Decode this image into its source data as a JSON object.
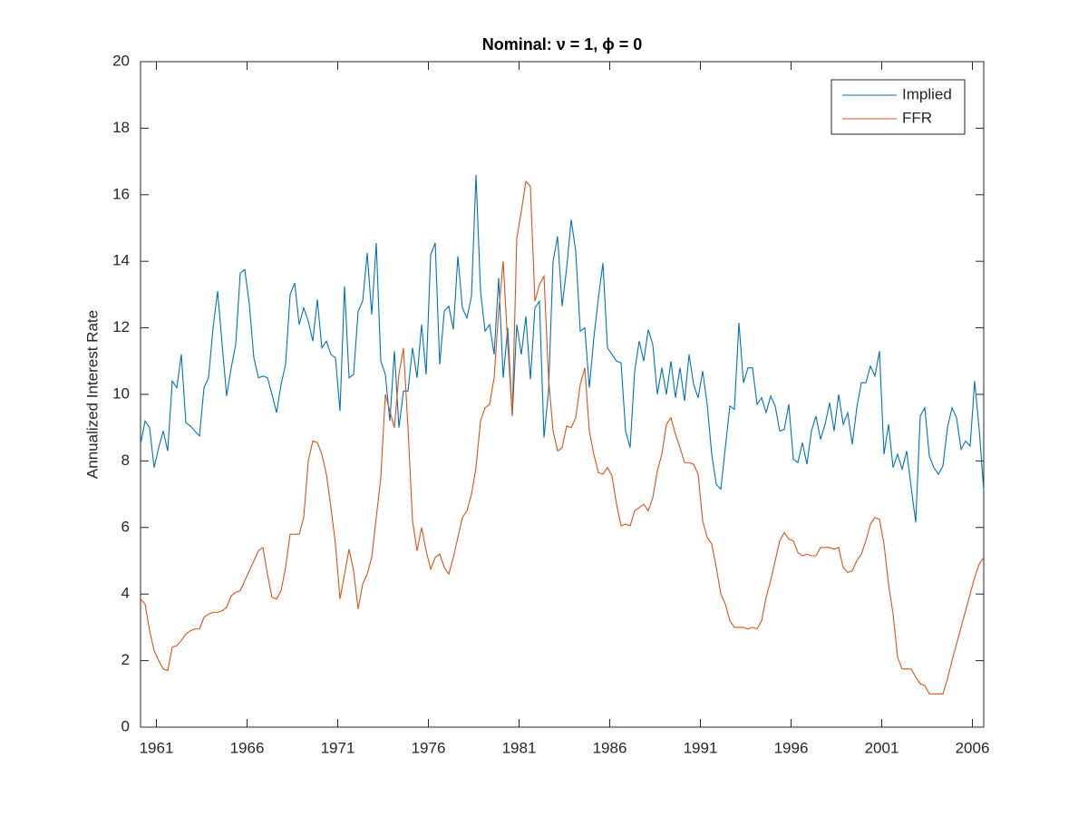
{
  "chart_data": {
    "type": "line",
    "title": "Nominal: ν = 1, ϕ = 0",
    "y_label": "Annualized Interest Rate",
    "x": [
      1960.125,
      1960.375,
      1960.625,
      1960.875,
      1961.125,
      1961.375,
      1961.625,
      1961.875,
      1962.125,
      1962.375,
      1962.625,
      1962.875,
      1963.125,
      1963.375,
      1963.625,
      1963.875,
      1964.125,
      1964.375,
      1964.625,
      1964.875,
      1965.125,
      1965.375,
      1965.625,
      1965.875,
      1966.125,
      1966.375,
      1966.625,
      1966.875,
      1967.125,
      1967.375,
      1967.625,
      1967.875,
      1968.125,
      1968.375,
      1968.625,
      1968.875,
      1969.125,
      1969.375,
      1969.625,
      1969.875,
      1970.125,
      1970.375,
      1970.625,
      1970.875,
      1971.125,
      1971.375,
      1971.625,
      1971.875,
      1972.125,
      1972.375,
      1972.625,
      1972.875,
      1973.125,
      1973.375,
      1973.625,
      1973.875,
      1974.125,
      1974.375,
      1974.625,
      1974.875,
      1975.125,
      1975.375,
      1975.625,
      1975.875,
      1976.125,
      1976.375,
      1976.625,
      1976.875,
      1977.125,
      1977.375,
      1977.625,
      1977.875,
      1978.125,
      1978.375,
      1978.625,
      1978.875,
      1979.125,
      1979.375,
      1979.625,
      1979.875,
      1980.125,
      1980.375,
      1980.625,
      1980.875,
      1981.125,
      1981.375,
      1981.625,
      1981.875,
      1982.125,
      1982.375,
      1982.625,
      1982.875,
      1983.125,
      1983.375,
      1983.625,
      1983.875,
      1984.125,
      1984.375,
      1984.625,
      1984.875,
      1985.125,
      1985.375,
      1985.625,
      1985.875,
      1986.125,
      1986.375,
      1986.625,
      1986.875,
      1987.125,
      1987.375,
      1987.625,
      1987.875,
      1988.125,
      1988.375,
      1988.625,
      1988.875,
      1989.125,
      1989.375,
      1989.625,
      1989.875,
      1990.125,
      1990.375,
      1990.625,
      1990.875,
      1991.125,
      1991.375,
      1991.625,
      1991.875,
      1992.125,
      1992.375,
      1992.625,
      1992.875,
      1993.125,
      1993.375,
      1993.625,
      1993.875,
      1994.125,
      1994.375,
      1994.625,
      1994.875,
      1995.125,
      1995.375,
      1995.625,
      1995.875,
      1996.125,
      1996.375,
      1996.625,
      1996.875,
      1997.125,
      1997.375,
      1997.625,
      1997.875,
      1998.125,
      1998.375,
      1998.625,
      1998.875,
      1999.125,
      1999.375,
      1999.625,
      1999.875,
      2000.125,
      2000.375,
      2000.625,
      2000.875,
      2001.125,
      2001.375,
      2001.625,
      2001.875,
      2002.125,
      2002.375,
      2002.625,
      2002.875,
      2003.125,
      2003.375,
      2003.625,
      2003.875,
      2004.125,
      2004.375,
      2004.625,
      2004.875,
      2005.125,
      2005.375,
      2005.625,
      2005.875,
      2006.125,
      2006.375,
      2006.625
    ],
    "series": [
      {
        "name": "Implied",
        "color": "#0072BD",
        "values": [
          8.5,
          9.2,
          9.0,
          7.8,
          8.4,
          8.9,
          8.3,
          10.4,
          10.2,
          11.2,
          9.15,
          9.05,
          8.9,
          8.75,
          10.2,
          10.5,
          12.0,
          13.1,
          11.5,
          9.95,
          10.8,
          11.5,
          13.65,
          13.75,
          12.7,
          11.1,
          10.5,
          10.55,
          10.5,
          10.0,
          9.45,
          10.3,
          10.9,
          13.0,
          13.35,
          12.1,
          12.6,
          12.2,
          11.6,
          12.85,
          11.4,
          11.6,
          11.2,
          11.1,
          9.5,
          13.25,
          10.5,
          10.6,
          12.5,
          12.8,
          14.25,
          12.4,
          14.55,
          11.0,
          10.6,
          9.2,
          11.3,
          9.0,
          10.1,
          10.1,
          11.4,
          10.5,
          12.1,
          10.6,
          14.2,
          14.55,
          10.9,
          12.5,
          12.65,
          11.95,
          14.15,
          12.6,
          12.3,
          12.95,
          16.6,
          13.1,
          11.9,
          12.1,
          11.2,
          13.5,
          10.5,
          12.0,
          9.35,
          12.1,
          11.2,
          12.35,
          10.45,
          12.6,
          12.8,
          8.7,
          10.1,
          14.0,
          14.75,
          12.65,
          13.8,
          15.25,
          14.3,
          11.9,
          12.0,
          10.2,
          11.7,
          12.9,
          13.95,
          11.4,
          11.2,
          11.0,
          10.95,
          8.9,
          8.4,
          10.7,
          11.6,
          11.0,
          11.95,
          11.5,
          10.0,
          10.8,
          10.0,
          11.0,
          9.9,
          10.8,
          9.8,
          11.2,
          10.3,
          9.9,
          10.7,
          9.7,
          8.2,
          7.3,
          7.15,
          8.4,
          9.65,
          9.55,
          12.15,
          10.35,
          10.8,
          10.8,
          9.7,
          9.9,
          9.45,
          9.95,
          9.65,
          8.9,
          8.95,
          9.7,
          8.05,
          7.95,
          8.55,
          7.9,
          8.9,
          9.35,
          8.65,
          9.1,
          9.75,
          8.9,
          10.0,
          9.1,
          9.45,
          8.5,
          9.6,
          10.35,
          10.35,
          10.85,
          10.55,
          11.3,
          8.2,
          9.1,
          7.8,
          8.2,
          7.75,
          8.3,
          7.2,
          6.15,
          9.35,
          9.6,
          8.15,
          7.8,
          7.6,
          7.85,
          9.0,
          9.6,
          9.3,
          8.35,
          8.6,
          8.45,
          10.4,
          8.95,
          7.1
        ]
      },
      {
        "name": "FFR",
        "color": "#D95319",
        "values": [
          3.85,
          3.7,
          2.9,
          2.3,
          2.0,
          1.75,
          1.7,
          2.4,
          2.45,
          2.6,
          2.8,
          2.9,
          2.95,
          2.95,
          3.3,
          3.4,
          3.45,
          3.45,
          3.5,
          3.6,
          3.95,
          4.05,
          4.1,
          4.4,
          4.7,
          5.0,
          5.3,
          5.4,
          4.6,
          3.9,
          3.85,
          4.1,
          4.8,
          5.8,
          5.8,
          5.8,
          6.3,
          8.0,
          8.6,
          8.55,
          8.2,
          7.6,
          6.6,
          5.5,
          3.85,
          4.6,
          5.35,
          4.7,
          3.55,
          4.3,
          4.6,
          5.1,
          6.3,
          7.5,
          10.0,
          9.5,
          9.0,
          10.6,
          11.4,
          9.0,
          6.2,
          5.3,
          6.0,
          5.3,
          4.75,
          5.1,
          5.2,
          4.8,
          4.6,
          5.1,
          5.7,
          6.3,
          6.5,
          7.0,
          7.8,
          9.2,
          9.6,
          9.7,
          10.5,
          12.5,
          14.0,
          11.5,
          9.4,
          14.7,
          15.5,
          16.4,
          16.25,
          12.8,
          13.3,
          13.55,
          10.5,
          8.9,
          8.3,
          8.4,
          9.05,
          9.0,
          9.3,
          10.3,
          10.8,
          8.9,
          8.2,
          7.65,
          7.6,
          7.8,
          7.55,
          6.7,
          6.05,
          6.1,
          6.05,
          6.5,
          6.6,
          6.7,
          6.5,
          6.9,
          7.7,
          8.2,
          9.1,
          9.3,
          8.8,
          8.4,
          7.95,
          7.95,
          7.9,
          7.6,
          6.2,
          5.7,
          5.5,
          4.8,
          4.0,
          3.7,
          3.2,
          3.0,
          3.0,
          3.0,
          2.95,
          3.0,
          2.95,
          3.2,
          3.9,
          4.4,
          5.0,
          5.6,
          5.85,
          5.65,
          5.6,
          5.25,
          5.15,
          5.2,
          5.15,
          5.15,
          5.4,
          5.4,
          5.4,
          5.35,
          5.4,
          4.8,
          4.65,
          4.7,
          5.0,
          5.2,
          5.6,
          6.1,
          6.3,
          6.25,
          5.5,
          4.3,
          3.4,
          2.1,
          1.75,
          1.75,
          1.75,
          1.5,
          1.3,
          1.25,
          1.0,
          1.0,
          1.0,
          1.0,
          1.45,
          2.0,
          2.5,
          3.0,
          3.5,
          4.0,
          4.5,
          4.9,
          5.1
        ]
      }
    ],
    "xlim": [
      1960.125,
      2006.625
    ],
    "xticks": [
      1961,
      1966,
      1971,
      1976,
      1981,
      1986,
      1991,
      1996,
      2001,
      2006
    ],
    "ylim": [
      0,
      20
    ],
    "yticks": [
      0,
      2,
      4,
      6,
      8,
      10,
      12,
      14,
      16,
      18,
      20
    ],
    "grid": false,
    "legend": "northeast"
  }
}
